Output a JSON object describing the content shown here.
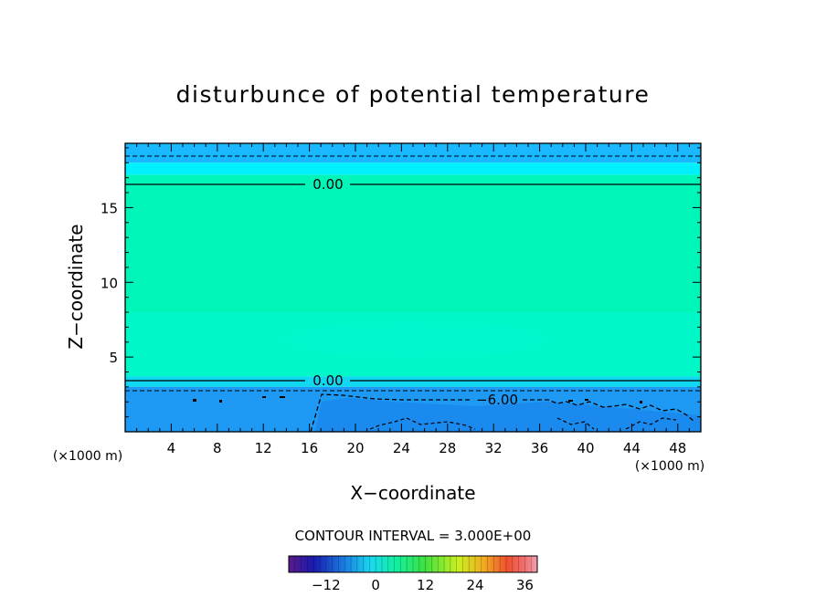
{
  "chart_data": {
    "type": "heatmap",
    "title": "disturbunce of potential temperature",
    "xlabel": "X−coordinate",
    "ylabel": "Z−coordinate",
    "x_unit": "(×1000 m)",
    "y_unit": "(×1000 m)",
    "xlim": [
      0,
      50
    ],
    "ylim": [
      0,
      19.3
    ],
    "x_ticks": [
      4,
      8,
      12,
      16,
      20,
      24,
      28,
      32,
      36,
      40,
      44,
      48
    ],
    "y_ticks": [
      5,
      10,
      15
    ],
    "contour_interval_label": "CONTOUR INTERVAL = 3.000E+00",
    "contour_labels": [
      {
        "text": "0.00",
        "x": 17.5,
        "z": 17.1
      },
      {
        "text": "0.00",
        "x": 17.5,
        "z": 3.5
      },
      {
        "text": "−6.00",
        "x": 32.5,
        "z": 2.3
      }
    ],
    "field_bands": [
      {
        "z_from": 18.0,
        "z_to": 19.3,
        "value": -3,
        "color": "#1ab8ff"
      },
      {
        "z_from": 17.2,
        "z_to": 18.0,
        "value": -1.5,
        "color": "#00f0ff"
      },
      {
        "z_from": 8.0,
        "z_to": 17.2,
        "value": 0,
        "color": "#00f5b8"
      },
      {
        "z_from": 3.7,
        "z_to": 8.0,
        "value": 0.5,
        "color": "#00f7c8"
      },
      {
        "z_from": 3.0,
        "z_to": 3.7,
        "value": -2,
        "color": "#10d8f0"
      },
      {
        "z_from": 0.0,
        "z_to": 3.0,
        "value": -6,
        "color": "#1e9af5"
      }
    ],
    "colorbar": {
      "ticks": [
        "−12",
        "0",
        "12",
        "24",
        "36"
      ],
      "range": [
        -21,
        39
      ]
    }
  }
}
